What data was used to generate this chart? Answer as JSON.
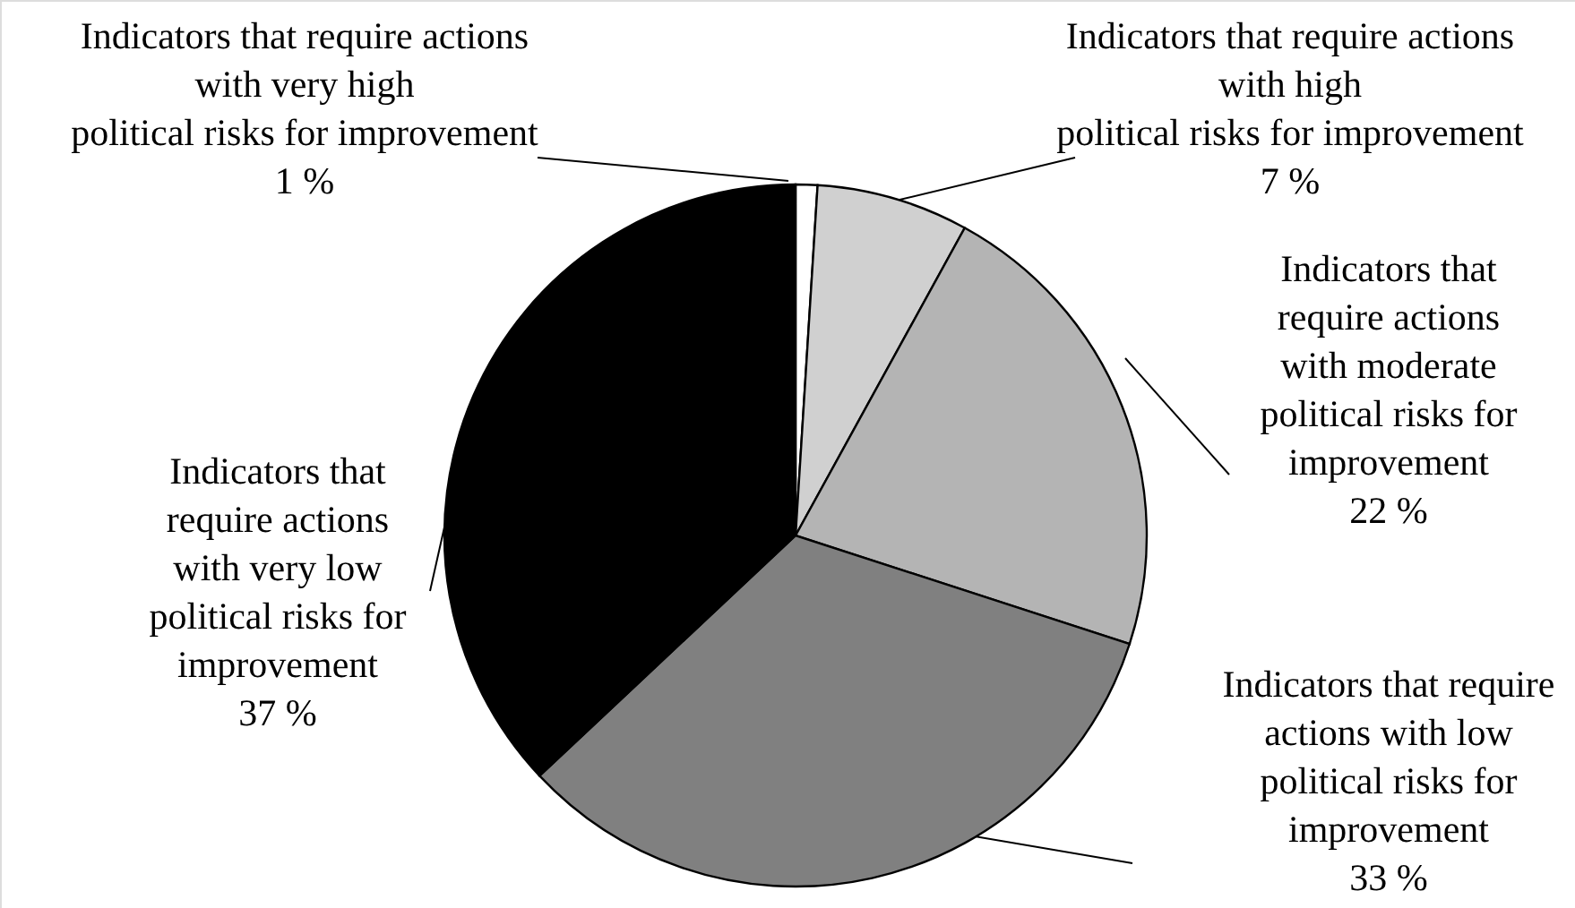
{
  "chart_data": {
    "type": "pie",
    "categories": [
      "Indicators that require actions\nwith very high\npolitical risks for improvement",
      "Indicators that require actions\nwith high\npolitical risks for improvement",
      "Indicators that\nrequire actions\nwith moderate\npolitical risks for\nimprovement",
      "Indicators that require\nactions with low\npolitical risks for\nimprovement",
      "Indicators that\nrequire actions\nwith very low\npolitical risks for\nimprovement"
    ],
    "values": [
      1,
      7,
      22,
      33,
      37
    ],
    "value_labels": [
      "1 %",
      "7 %",
      "22 %",
      "33 %",
      "37 %"
    ],
    "colors": [
      "#ffffff",
      "#d0d0d0",
      "#b4b4b4",
      "#808080",
      "#000000"
    ]
  }
}
